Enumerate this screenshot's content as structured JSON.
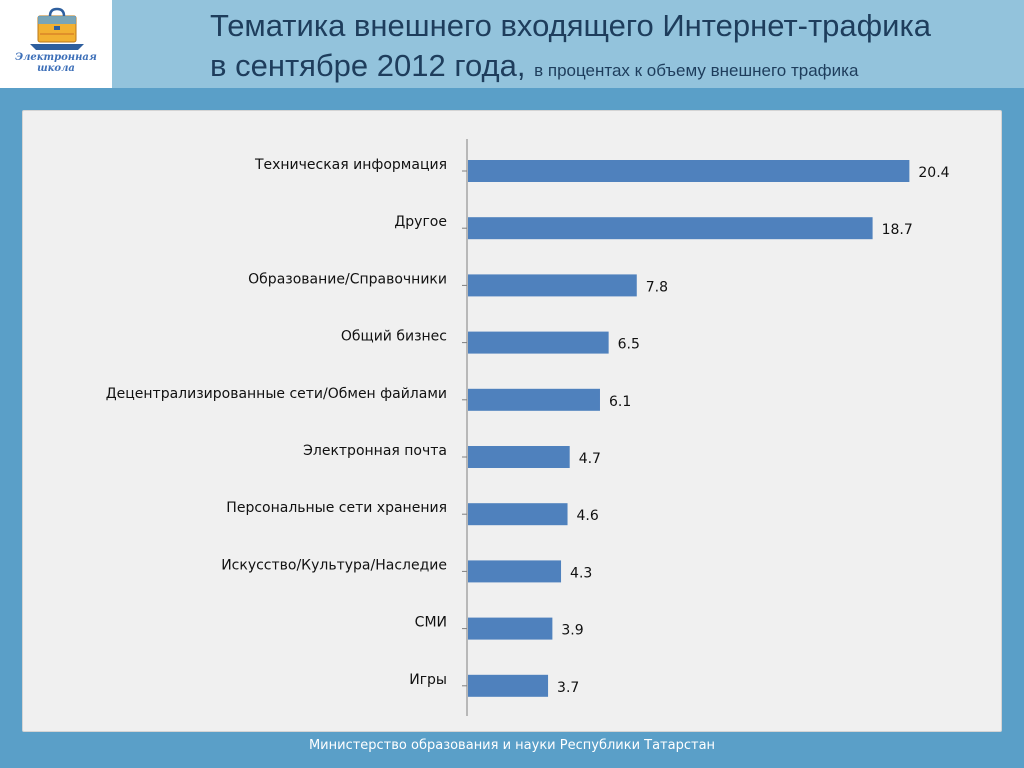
{
  "header": {
    "logo_line1": "Электронная",
    "logo_line2": "школа",
    "title_line1": "Тематика внешнего входящего Интернет-трафика",
    "title_line2": "в сентябре 2012 года,",
    "subtitle": "в процентах к объему внешнего трафика"
  },
  "footer": {
    "text": "Министерство образования и науки  Республики Татарстан"
  },
  "colors": {
    "bar": "#4f81bd",
    "axis": "#7f7f7f",
    "header_bg": "#93c3dc",
    "page_bg": "#5a9fc8"
  },
  "chart_data": {
    "type": "bar",
    "orientation": "horizontal",
    "categories": [
      "Техническая информация",
      "Другое",
      "Образование/Справочники",
      "Общий бизнес",
      "Децентрализированные сети/Обмен файлами",
      "Электронная почта",
      "Персональные сети хранения",
      "Искусство/Культура/Наследие",
      "СМИ",
      "Игры"
    ],
    "values": [
      20.4,
      18.7,
      7.8,
      6.5,
      6.1,
      4.7,
      4.6,
      4.3,
      3.9,
      3.7
    ],
    "value_labels": [
      "20.4",
      "18.7",
      "7.8",
      "6.5",
      "6.1",
      "4.7",
      "4.6",
      "4.3",
      "3.9",
      "3.7"
    ],
    "xlim": [
      0,
      22
    ],
    "grid": false,
    "legend": "none"
  }
}
